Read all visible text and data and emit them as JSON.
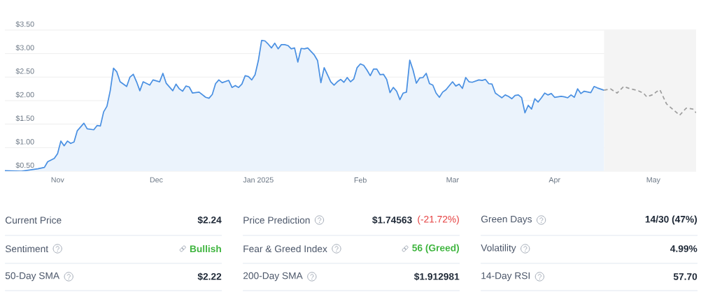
{
  "chart_data": [
    {
      "type": "area",
      "xlim": [
        "2024-10-16",
        "2025-05-14"
      ],
      "ylim": [
        0.5,
        3.5
      ],
      "xticks": [
        {
          "value": "2024-11-01",
          "label": "Nov"
        },
        {
          "value": "2024-12-01",
          "label": "Dec"
        },
        {
          "value": "2025-01-01",
          "label": "Jan 2025"
        },
        {
          "value": "2025-02-01",
          "label": "Feb"
        },
        {
          "value": "2025-03-01",
          "label": "Mar"
        },
        {
          "value": "2025-04-01",
          "label": "Apr"
        },
        {
          "value": "2025-05-01",
          "label": "May"
        }
      ],
      "yticks": [
        {
          "value": 0.5,
          "label": "$0.50"
        },
        {
          "value": 1.0,
          "label": "$1.00"
        },
        {
          "value": 1.5,
          "label": "$1.50"
        },
        {
          "value": 2.0,
          "label": "$2.00"
        },
        {
          "value": 2.5,
          "label": "$2.50"
        },
        {
          "value": 3.0,
          "label": "$3.00"
        },
        {
          "value": 3.5,
          "label": "$3.50"
        }
      ],
      "grid": "y",
      "bands": [
        {
          "axis": "x",
          "from": "2025-04-16",
          "to": "2025-05-14",
          "color": "#f4f4f4"
        }
      ],
      "series": [
        {
          "type": "area",
          "color": "#4a90e2",
          "x": [
            "2024-10-16",
            "2024-10-21",
            "2024-10-26",
            "2024-10-28",
            "2024-10-29",
            "2024-10-31",
            "2024-11-01",
            "2024-11-02",
            "2024-11-03",
            "2024-11-04",
            "2024-11-05",
            "2024-11-06",
            "2024-11-07",
            "2024-11-09",
            "2024-11-10",
            "2024-11-12",
            "2024-11-13",
            "2024-11-14",
            "2024-11-15",
            "2024-11-16",
            "2024-11-17",
            "2024-11-18",
            "2024-11-19",
            "2024-11-20",
            "2024-11-22",
            "2024-11-23",
            "2024-11-24",
            "2024-11-25",
            "2024-11-26",
            "2024-11-27",
            "2024-11-29",
            "2024-11-30",
            "2024-12-02",
            "2024-12-03",
            "2024-12-04",
            "2024-12-06",
            "2024-12-07",
            "2024-12-08",
            "2024-12-09",
            "2024-12-10",
            "2024-12-11",
            "2024-12-12",
            "2024-12-14",
            "2024-12-16",
            "2024-12-17",
            "2024-12-18",
            "2024-12-19",
            "2024-12-20",
            "2024-12-21",
            "2024-12-23",
            "2024-12-24",
            "2024-12-25",
            "2024-12-26",
            "2024-12-27",
            "2024-12-28",
            "2024-12-29",
            "2024-12-30",
            "2024-12-31",
            "2025-01-01",
            "2025-01-02",
            "2025-01-03",
            "2025-01-04",
            "2025-01-05",
            "2025-01-06",
            "2025-01-07",
            "2025-01-08",
            "2025-01-09",
            "2025-01-10",
            "2025-01-11",
            "2025-01-12",
            "2025-01-13",
            "2025-01-14",
            "2025-01-15",
            "2025-01-16",
            "2025-01-18",
            "2025-01-19",
            "2025-01-20",
            "2025-01-21",
            "2025-01-22",
            "2025-01-23",
            "2025-01-24",
            "2025-01-25",
            "2025-01-26",
            "2025-01-27",
            "2025-01-28",
            "2025-01-29",
            "2025-01-30",
            "2025-01-31",
            "2025-02-01",
            "2025-02-02",
            "2025-02-03",
            "2025-02-04",
            "2025-02-05",
            "2025-02-06",
            "2025-02-07",
            "2025-02-08",
            "2025-02-09",
            "2025-02-10",
            "2025-02-11",
            "2025-02-12",
            "2025-02-13",
            "2025-02-14",
            "2025-02-15",
            "2025-02-16",
            "2025-02-17",
            "2025-02-18",
            "2025-02-19",
            "2025-02-20",
            "2025-02-21",
            "2025-02-22",
            "2025-02-23",
            "2025-02-24",
            "2025-02-25",
            "2025-02-26",
            "2025-02-27",
            "2025-03-01",
            "2025-03-02",
            "2025-03-03",
            "2025-03-04",
            "2025-03-05",
            "2025-03-06",
            "2025-03-07",
            "2025-03-09",
            "2025-03-10",
            "2025-03-11",
            "2025-03-12",
            "2025-03-13",
            "2025-03-14",
            "2025-03-15",
            "2025-03-16",
            "2025-03-17",
            "2025-03-18",
            "2025-03-19",
            "2025-03-20",
            "2025-03-21",
            "2025-03-22",
            "2025-03-23",
            "2025-03-24",
            "2025-03-25",
            "2025-03-26",
            "2025-03-27",
            "2025-03-28",
            "2025-03-29",
            "2025-03-30",
            "2025-03-31",
            "2025-04-01",
            "2025-04-03",
            "2025-04-04",
            "2025-04-05",
            "2025-04-06",
            "2025-04-07",
            "2025-04-08",
            "2025-04-09",
            "2025-04-10",
            "2025-04-12",
            "2025-04-13",
            "2025-04-14",
            "2025-04-16"
          ],
          "values": [
            0.51,
            0.5,
            0.55,
            0.58,
            0.7,
            0.77,
            0.87,
            1.14,
            1.04,
            1.14,
            1.09,
            1.12,
            1.36,
            1.52,
            1.4,
            1.38,
            1.47,
            1.46,
            1.76,
            1.88,
            2.21,
            2.69,
            2.61,
            2.4,
            2.3,
            2.5,
            2.56,
            2.4,
            2.21,
            2.4,
            2.33,
            2.44,
            2.4,
            2.58,
            2.37,
            2.21,
            2.35,
            2.25,
            2.2,
            2.31,
            2.29,
            2.16,
            2.18,
            2.07,
            2.05,
            2.13,
            2.36,
            2.44,
            2.38,
            2.43,
            2.28,
            2.32,
            2.28,
            2.35,
            2.53,
            2.51,
            2.44,
            2.55,
            2.85,
            3.28,
            3.27,
            3.2,
            3.12,
            3.22,
            3.1,
            3.19,
            3.19,
            3.17,
            3.1,
            3.12,
            2.82,
            3.11,
            3.1,
            3.12,
            2.97,
            2.85,
            2.38,
            2.7,
            2.55,
            2.4,
            2.33,
            2.4,
            2.45,
            2.39,
            2.49,
            2.4,
            2.46,
            2.7,
            2.78,
            2.75,
            2.65,
            2.53,
            2.67,
            2.67,
            2.55,
            2.56,
            2.45,
            2.17,
            2.28,
            2.2,
            2.02,
            2.16,
            2.18,
            2.86,
            2.65,
            2.37,
            2.48,
            2.49,
            2.58,
            2.36,
            2.33,
            2.16,
            2.07,
            2.18,
            2.23,
            2.4,
            2.31,
            2.35,
            2.26,
            2.49,
            2.4,
            2.39,
            2.44,
            2.43,
            2.45,
            2.36,
            2.35,
            2.16,
            2.11,
            2.06,
            2.12,
            2.09,
            2.04,
            2.11,
            2.12,
            2.06,
            1.74,
            1.9,
            1.82,
            2.04,
            1.97,
            2.06,
            2.16,
            2.12,
            2.15,
            2.07,
            2.09,
            2.08,
            2.06,
            2.12,
            2.07,
            2.25,
            2.15,
            2.2,
            2.17,
            2.3,
            2.27,
            2.22
          ]
        },
        {
          "type": "line",
          "color": "#9e9e9e",
          "line_style": "dashed",
          "x": [
            "2025-04-16",
            "2025-04-18",
            "2025-04-20",
            "2025-04-22",
            "2025-04-24",
            "2025-04-26",
            "2025-04-28",
            "2025-04-29",
            "2025-05-01",
            "2025-05-02",
            "2025-05-03",
            "2025-05-05",
            "2025-05-09",
            "2025-05-11",
            "2025-05-13",
            "2025-05-14"
          ],
          "values": [
            2.22,
            2.25,
            2.16,
            2.3,
            2.25,
            2.22,
            2.16,
            2.08,
            2.13,
            2.19,
            2.23,
            1.93,
            1.69,
            1.84,
            1.82,
            1.74
          ]
        }
      ]
    },
    {
      "type": "other",
      "annotations": [
        "Current Price",
        "$2.24",
        "Price Prediction",
        "$1.74563",
        "(-21.72%)",
        "Green Days",
        "14/30 (47%)",
        "Sentiment",
        "Bullish",
        "Fear & Greed Index",
        "56 (Greed)",
        "Volatility",
        "4.99%",
        "50-Day SMA",
        "$2.22",
        "200-Day SMA",
        "$1.912981",
        "14-Day RSI",
        "57.70"
      ]
    }
  ]
}
